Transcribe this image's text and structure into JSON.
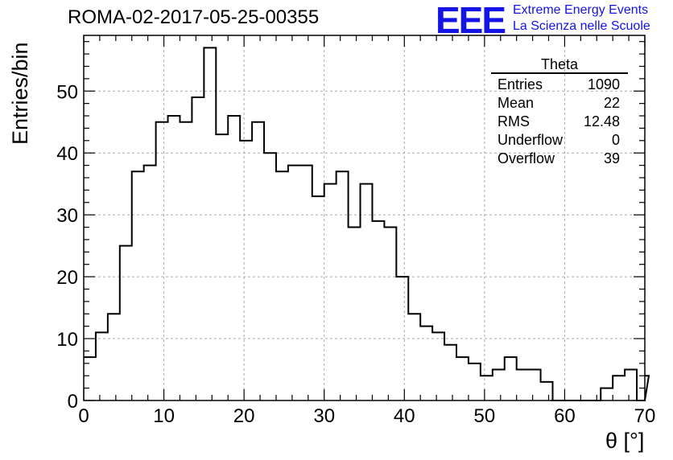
{
  "title": "ROMA-02-2017-05-25-00355",
  "logo": {
    "letters": "EEE",
    "line1": "Extreme Energy Events",
    "line2": "La Scienza nelle Scuole",
    "color": "#1414e6"
  },
  "stats_box": {
    "title": "Theta",
    "rows": [
      {
        "label": "Entries",
        "value": "1090"
      },
      {
        "label": "Mean",
        "value": "22"
      },
      {
        "label": "RMS",
        "value": "12.48"
      },
      {
        "label": "Underflow",
        "value": "0"
      },
      {
        "label": "Overflow",
        "value": "39"
      }
    ]
  },
  "chart_data": {
    "type": "bar",
    "style": "step-histogram",
    "xlabel": "θ [°]",
    "ylabel": "Entries/bin",
    "xlim": [
      0,
      70
    ],
    "ylim": [
      0,
      59
    ],
    "xticks": [
      0,
      10,
      20,
      30,
      40,
      50,
      60,
      70
    ],
    "yticks": [
      0,
      10,
      20,
      30,
      40,
      50
    ],
    "grid": true,
    "bin_width": 1.5,
    "bin_edges_start": 0,
    "values": [
      7,
      11,
      14,
      25,
      37,
      38,
      45,
      46,
      45,
      49,
      57,
      43,
      46,
      42,
      45,
      40,
      37,
      38,
      38,
      33,
      35,
      37,
      28,
      35,
      29,
      28,
      20,
      14,
      12,
      11,
      9,
      7,
      6,
      4,
      5,
      7,
      5,
      5,
      3,
      0,
      0,
      0,
      0,
      2,
      4,
      5,
      0,
      4
    ],
    "line_color": "#000000"
  }
}
